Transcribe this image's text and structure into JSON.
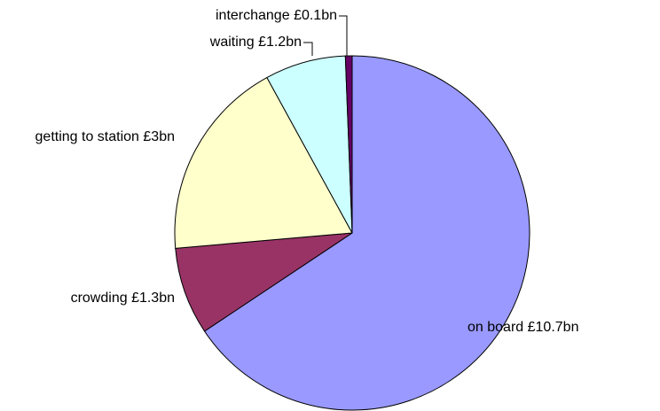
{
  "chart_data": {
    "type": "pie",
    "categories": [
      "on board",
      "crowding",
      "getting to station",
      "waiting",
      "interchange"
    ],
    "values": [
      10.7,
      1.3,
      3,
      1.2,
      0.1
    ],
    "value_labels": [
      "£10.7bn",
      "£1.3bn",
      "£3bn",
      "£1.2bn",
      "£0.1bn"
    ],
    "colors": [
      "#9999ff",
      "#993366",
      "#ffffcc",
      "#ccffff",
      "#660066"
    ]
  }
}
